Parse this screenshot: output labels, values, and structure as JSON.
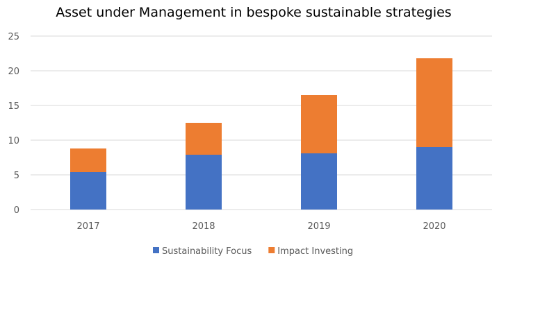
{
  "chart_data": {
    "type": "bar",
    "stacked": true,
    "title": "Asset under Management in bespoke sustainable strategies",
    "xlabel": "",
    "ylabel": "",
    "categories": [
      "2017",
      "2018",
      "2019",
      "2020"
    ],
    "series": [
      {
        "name": "Sustainability Focus",
        "color": "#4472C4",
        "values": [
          5.4,
          7.9,
          8.1,
          9.0
        ]
      },
      {
        "name": "Impact Investing",
        "color": "#ED7D31",
        "values": [
          3.4,
          4.6,
          8.4,
          12.8
        ]
      }
    ],
    "ylim": [
      0,
      25
    ],
    "yticks": [
      0,
      5,
      10,
      15,
      20,
      25
    ],
    "grid": true,
    "legend": "bottom"
  }
}
